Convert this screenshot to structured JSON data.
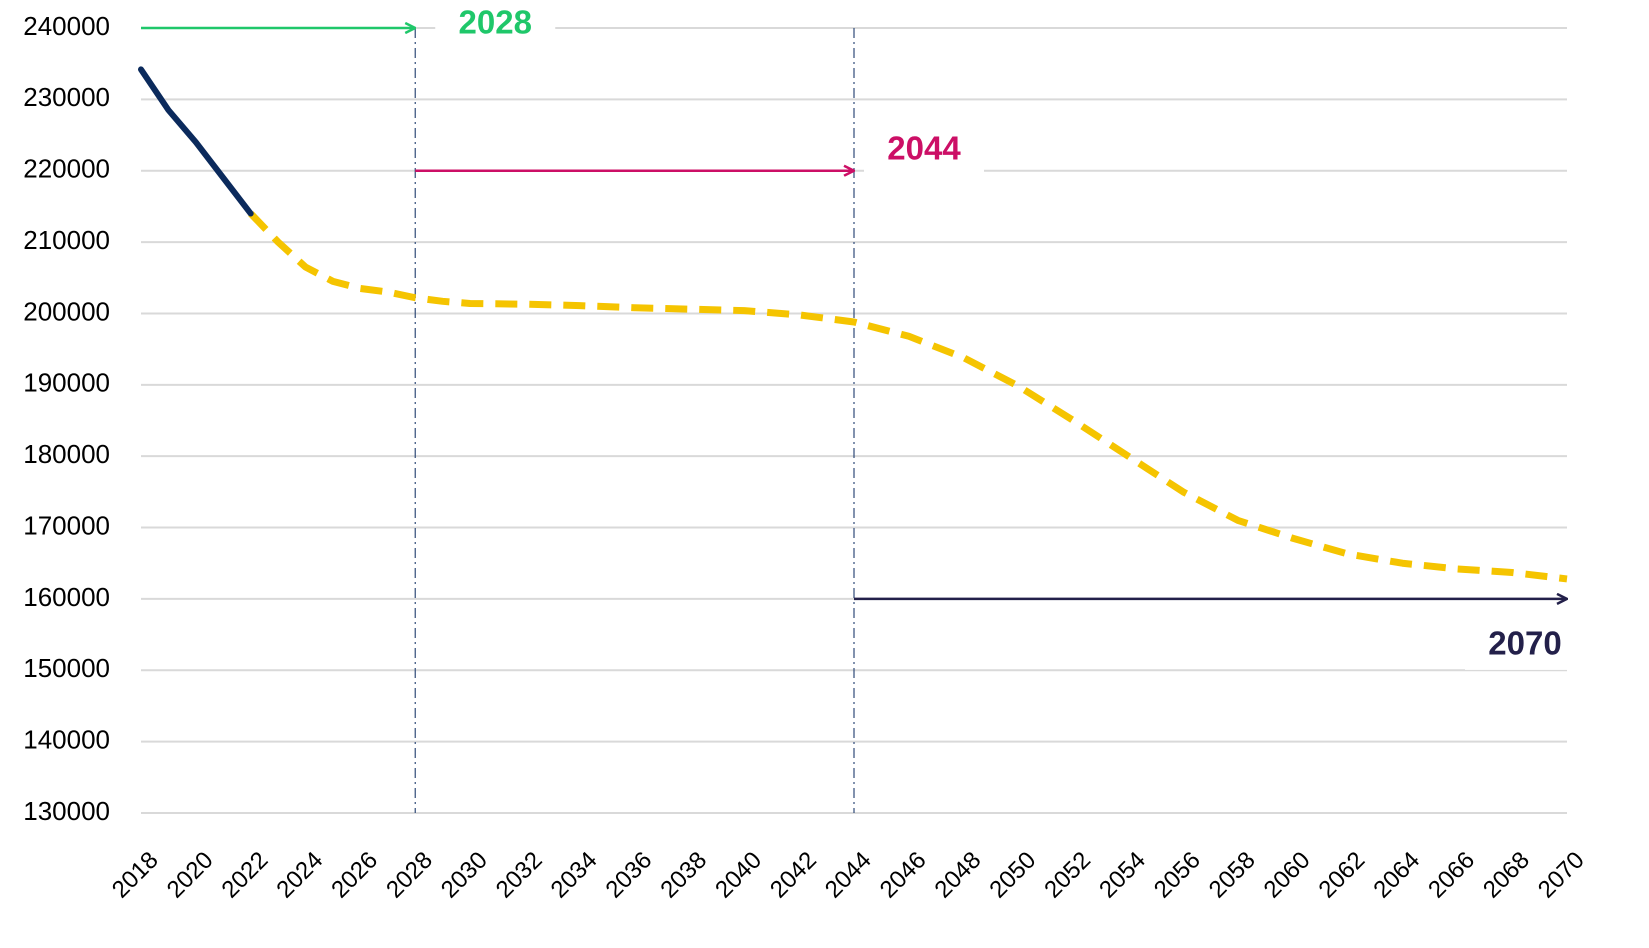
{
  "chart_data": {
    "type": "line",
    "x": [
      2018,
      2019,
      2020,
      2021,
      2022,
      2023,
      2024,
      2025,
      2026,
      2027,
      2028,
      2029,
      2030,
      2032,
      2034,
      2036,
      2038,
      2040,
      2042,
      2044,
      2046,
      2048,
      2050,
      2052,
      2054,
      2056,
      2058,
      2060,
      2062,
      2064,
      2066,
      2068,
      2070
    ],
    "series": [
      {
        "color": "#0b2a5c",
        "dashed": false,
        "values": [
          234200,
          228500,
          224000,
          219000,
          214000,
          null,
          null,
          null,
          null,
          null,
          null,
          null,
          null,
          null,
          null,
          null,
          null,
          null,
          null,
          null,
          null,
          null,
          null,
          null,
          null,
          null,
          null,
          null,
          null,
          null,
          null,
          null,
          null
        ]
      },
      {
        "color": "#f5c400",
        "dashed": true,
        "values": [
          null,
          null,
          null,
          null,
          214000,
          210000,
          206500,
          204500,
          203500,
          203000,
          202200,
          201700,
          201400,
          201300,
          201100,
          200800,
          200600,
          200400,
          199800,
          198800,
          196800,
          193800,
          189800,
          185000,
          180000,
          175000,
          171000,
          168500,
          166300,
          165000,
          164200,
          163700,
          162800
        ]
      }
    ],
    "xlim": [
      2018,
      2070
    ],
    "xticks": [
      2018,
      2020,
      2022,
      2024,
      2026,
      2028,
      2030,
      2032,
      2034,
      2036,
      2038,
      2040,
      2042,
      2044,
      2046,
      2048,
      2050,
      2052,
      2054,
      2056,
      2058,
      2060,
      2062,
      2064,
      2066,
      2068,
      2070
    ],
    "ylim": [
      130000,
      240000
    ],
    "yticks": [
      130000,
      140000,
      150000,
      160000,
      170000,
      180000,
      190000,
      200000,
      210000,
      220000,
      230000,
      240000
    ],
    "grid": true,
    "annotations": [
      {
        "label": "2028",
        "x_start": 2018,
        "x_end": 2028,
        "y": 240000,
        "color": "#1fc76a"
      },
      {
        "label": "2044",
        "x_start": 2028,
        "x_end": 2044,
        "y": 220000,
        "color": "#cc0f66"
      },
      {
        "label": "2070",
        "x_start": 2044,
        "x_end": 2070,
        "y": 160000,
        "color": "#23204a"
      }
    ],
    "vlines": [
      2028,
      2044
    ]
  }
}
